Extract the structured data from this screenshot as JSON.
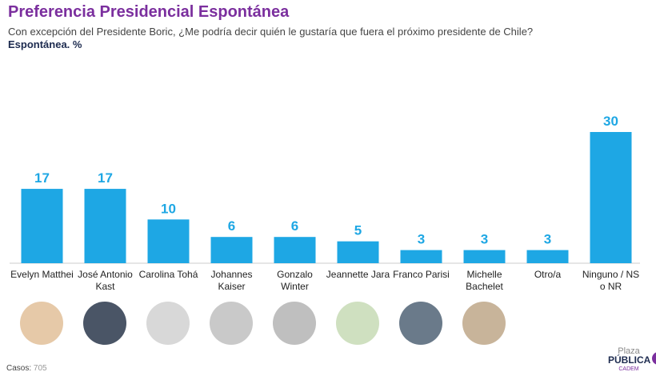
{
  "chart_data": {
    "type": "bar",
    "title": "Preferencia Presidencial Espontánea",
    "subtitle": "Con excepción del Presidente Boric, ¿Me podría decir quién le gustaría que fuera el próximo presidente de Chile?",
    "note": "Espontánea. %",
    "categories": [
      "Evelyn Matthei",
      "José Antonio Kast",
      "Carolina Tohá",
      "Johannes Kaiser",
      "Gonzalo Winter",
      "Jeannette Jara",
      "Franco Parisi",
      "Michelle Bachelet",
      "Otro/a",
      "Ninguno / NS o NR"
    ],
    "values": [
      17,
      17,
      10,
      6,
      6,
      5,
      3,
      3,
      3,
      30
    ],
    "color": "#1ea7e4",
    "source_label": "Casos",
    "source_value": "705",
    "logo": {
      "top": "Plaza",
      "main": "PÚBLICA",
      "sub": "CADEM"
    }
  }
}
